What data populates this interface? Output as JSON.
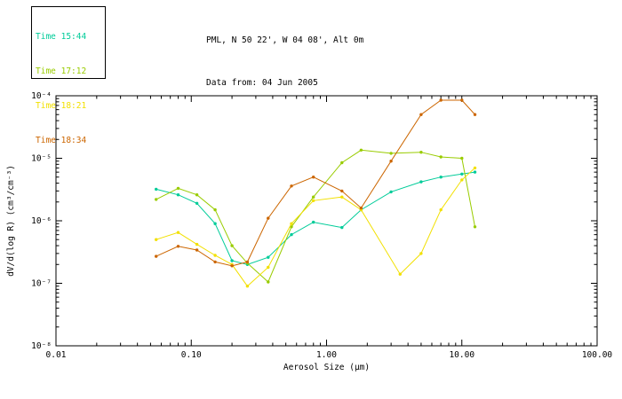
{
  "header": {
    "line1": "PML, N 50 22', W 04 08', Alt 0m",
    "line2": "Data from: 04 Jun 2005"
  },
  "legend": {
    "items": [
      {
        "label": "Time 15:44",
        "color": "#00cc99"
      },
      {
        "label": "Time 17:12",
        "color": "#99cc00"
      },
      {
        "label": "Time 18:21",
        "color": "#f2e000"
      },
      {
        "label": "Time 18:34",
        "color": "#cc6600"
      }
    ]
  },
  "chart_data": {
    "type": "line",
    "title": "PML, N 50 22', W 04 08', Alt 0m",
    "subtitle": "Data from: 04 Jun 2005",
    "x_scale": "log",
    "y_scale": "log",
    "xlim": [
      0.01,
      100.0
    ],
    "ylim": [
      1e-08,
      0.0001
    ],
    "xlabel": "Aerosol Size (μm)",
    "ylabel": "dV/d(log R) (cm³/cm⁻³)",
    "grid": false,
    "legend_position": "top-left",
    "xticks": [
      {
        "v": 0.01,
        "label": "0.01"
      },
      {
        "v": 0.1,
        "label": "0.10"
      },
      {
        "v": 1.0,
        "label": "1.00"
      },
      {
        "v": 10.0,
        "label": "10.00"
      },
      {
        "v": 100.0,
        "label": "100.00"
      }
    ],
    "yticks": [
      {
        "v": 0.0001,
        "label": "10⁻⁴"
      },
      {
        "v": 1e-05,
        "label": "10⁻⁵"
      },
      {
        "v": 1e-06,
        "label": "10⁻⁶"
      },
      {
        "v": 1e-07,
        "label": "10⁻⁷"
      },
      {
        "v": 1e-08,
        "label": "10⁻⁸"
      }
    ],
    "series": [
      {
        "name": "Time 15:44",
        "color": "#00cc99",
        "points": [
          [
            0.055,
            3.2e-06
          ],
          [
            0.08,
            2.6e-06
          ],
          [
            0.11,
            1.9e-06
          ],
          [
            0.15,
            9e-07
          ],
          [
            0.2,
            2.3e-07
          ],
          [
            0.26,
            2e-07
          ],
          [
            0.37,
            2.6e-07
          ],
          [
            0.55,
            6e-07
          ],
          [
            0.8,
            9.5e-07
          ],
          [
            1.3,
            7.8e-07
          ],
          [
            1.8,
            1.5e-06
          ],
          [
            3.0,
            2.9e-06
          ],
          [
            5.0,
            4.2e-06
          ],
          [
            7.0,
            5e-06
          ],
          [
            10.0,
            5.6e-06
          ],
          [
            12.5,
            6e-06
          ]
        ]
      },
      {
        "name": "Time 17:12",
        "color": "#99cc00",
        "points": [
          [
            0.055,
            2.2e-06
          ],
          [
            0.08,
            3.3e-06
          ],
          [
            0.11,
            2.6e-06
          ],
          [
            0.15,
            1.5e-06
          ],
          [
            0.2,
            4e-07
          ],
          [
            0.26,
            2.1e-07
          ],
          [
            0.37,
            1.05e-07
          ],
          [
            0.55,
            8e-07
          ],
          [
            0.8,
            2.4e-06
          ],
          [
            1.3,
            8.5e-06
          ],
          [
            1.8,
            1.35e-05
          ],
          [
            3.0,
            1.2e-05
          ],
          [
            5.0,
            1.25e-05
          ],
          [
            7.0,
            1.05e-05
          ],
          [
            10.0,
            1e-05
          ],
          [
            12.5,
            8e-07
          ]
        ]
      },
      {
        "name": "Time 18:21",
        "color": "#f2e000",
        "points": [
          [
            0.055,
            5e-07
          ],
          [
            0.08,
            6.5e-07
          ],
          [
            0.11,
            4.2e-07
          ],
          [
            0.15,
            2.8e-07
          ],
          [
            0.2,
            2e-07
          ],
          [
            0.26,
            9e-08
          ],
          [
            0.37,
            1.8e-07
          ],
          [
            0.55,
            9e-07
          ],
          [
            0.8,
            2.1e-06
          ],
          [
            1.3,
            2.4e-06
          ],
          [
            1.8,
            1.5e-06
          ],
          [
            3.5,
            1.4e-07
          ],
          [
            5.0,
            3e-07
          ],
          [
            7.0,
            1.5e-06
          ],
          [
            10.0,
            4.5e-06
          ],
          [
            12.5,
            7e-06
          ]
        ]
      },
      {
        "name": "Time 18:34",
        "color": "#cc6600",
        "points": [
          [
            0.055,
            2.7e-07
          ],
          [
            0.08,
            3.9e-07
          ],
          [
            0.11,
            3.4e-07
          ],
          [
            0.15,
            2.2e-07
          ],
          [
            0.2,
            1.9e-07
          ],
          [
            0.26,
            2.2e-07
          ],
          [
            0.37,
            1.1e-06
          ],
          [
            0.55,
            3.6e-06
          ],
          [
            0.8,
            5e-06
          ],
          [
            1.3,
            3e-06
          ],
          [
            1.8,
            1.6e-06
          ],
          [
            3.0,
            9e-06
          ],
          [
            5.0,
            5e-05
          ],
          [
            7.0,
            8.5e-05
          ],
          [
            10.0,
            8.5e-05
          ],
          [
            12.5,
            5e-05
          ]
        ]
      }
    ]
  }
}
